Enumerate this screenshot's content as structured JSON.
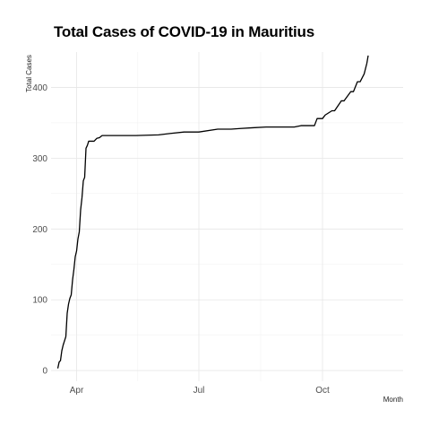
{
  "chart_data": {
    "type": "line",
    "title": "Total Cases of COVID-19 in Mauritius",
    "xlabel": "Month",
    "ylabel": "Total Cases",
    "x_tick_labels": [
      "Apr",
      "Jul",
      "Oct"
    ],
    "x_tick_dates": [
      "2020-04-01",
      "2020-07-01",
      "2020-10-01"
    ],
    "xlim": [
      "2020-03-13",
      "2020-11-30"
    ],
    "y_ticks": [
      0,
      100,
      200,
      300,
      400
    ],
    "ylim": [
      -15,
      450
    ],
    "grid": true,
    "legend": "none",
    "line_color": "#000000",
    "series": [
      {
        "x": [
          "2020-03-18",
          "2020-03-19",
          "2020-03-20",
          "2020-03-21",
          "2020-03-22",
          "2020-03-23",
          "2020-03-24",
          "2020-03-25",
          "2020-03-26",
          "2020-03-27",
          "2020-03-28",
          "2020-03-29",
          "2020-03-30",
          "2020-03-31",
          "2020-04-01",
          "2020-04-02",
          "2020-04-03",
          "2020-04-04",
          "2020-04-05",
          "2020-04-06",
          "2020-04-07",
          "2020-04-08",
          "2020-04-09",
          "2020-04-10",
          "2020-04-12",
          "2020-04-14",
          "2020-04-16",
          "2020-04-18",
          "2020-04-20",
          "2020-04-24",
          "2020-05-01",
          "2020-05-15",
          "2020-06-01",
          "2020-06-10",
          "2020-06-20",
          "2020-07-01",
          "2020-07-15",
          "2020-07-25",
          "2020-08-01",
          "2020-08-10",
          "2020-08-20",
          "2020-09-01",
          "2020-09-10",
          "2020-09-15",
          "2020-09-20",
          "2020-09-25",
          "2020-09-27",
          "2020-10-01",
          "2020-10-03",
          "2020-10-08",
          "2020-10-10",
          "2020-10-15",
          "2020-10-17",
          "2020-10-22",
          "2020-10-24",
          "2020-10-27",
          "2020-10-29",
          "2020-11-01",
          "2020-11-03",
          "2020-11-04"
        ],
        "y": [
          3,
          12,
          14,
          28,
          36,
          42,
          48,
          81,
          94,
          102,
          107,
          128,
          143,
          161,
          169,
          186,
          196,
          227,
          244,
          268,
          273,
          314,
          318,
          324,
          324,
          324,
          328,
          329,
          332,
          332,
          332,
          332,
          333,
          335,
          337,
          337,
          341,
          341,
          342,
          343,
          344,
          344,
          344,
          346,
          346,
          346,
          356,
          356,
          361,
          367,
          367,
          381,
          381,
          394,
          394,
          408,
          408,
          419,
          434,
          445
        ]
      }
    ]
  }
}
